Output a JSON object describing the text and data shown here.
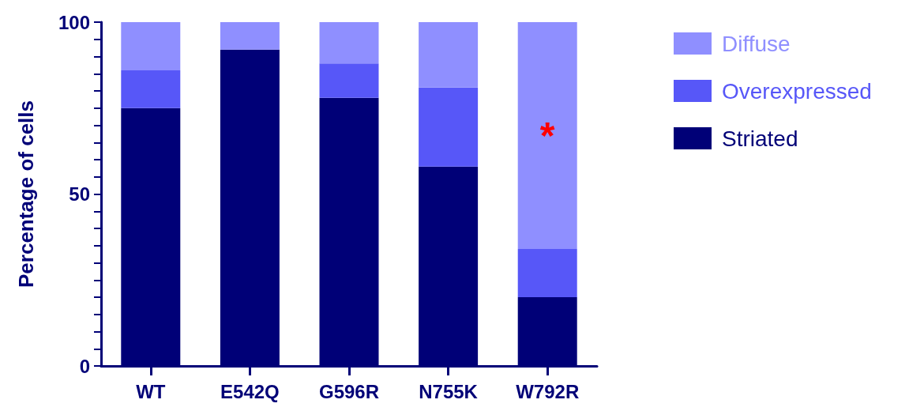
{
  "chart_data": {
    "type": "bar",
    "stacked": true,
    "ylabel": "Percentage of cells",
    "categories": [
      "WT",
      "E542Q",
      "G596R",
      "N755K",
      "W792R"
    ],
    "series": [
      {
        "name": "Striated",
        "color": "#000077",
        "values": [
          75,
          92,
          78,
          58,
          20
        ]
      },
      {
        "name": "Overexpressed",
        "color": "#5757f8",
        "values": [
          11,
          0,
          10,
          23,
          14
        ]
      },
      {
        "name": "Diffuse",
        "color": "#8f8fff",
        "values": [
          14,
          8,
          12,
          19,
          66
        ]
      }
    ],
    "ylim": [
      0,
      100
    ],
    "yticks": [
      0,
      {
        "value": 5,
        "label": null
      },
      {
        "value": 10,
        "label": null
      },
      {
        "value": 15,
        "label": null
      },
      {
        "value": 20,
        "label": null
      },
      {
        "value": 25,
        "label": null
      },
      {
        "value": 30,
        "label": null
      },
      {
        "value": 35,
        "label": null
      },
      {
        "value": 40,
        "label": null
      },
      {
        "value": 45,
        "label": null
      },
      50,
      {
        "value": 55,
        "label": null
      },
      {
        "value": 60,
        "label": null
      },
      {
        "value": 65,
        "label": null
      },
      {
        "value": 70,
        "label": null
      },
      {
        "value": 75,
        "label": null
      },
      {
        "value": 80,
        "label": null
      },
      {
        "value": 85,
        "label": null
      },
      {
        "value": 90,
        "label": null
      },
      {
        "value": 95,
        "label": null
      },
      100
    ],
    "annotations": [
      "*"
    ],
    "legend": "right",
    "grid": false
  }
}
